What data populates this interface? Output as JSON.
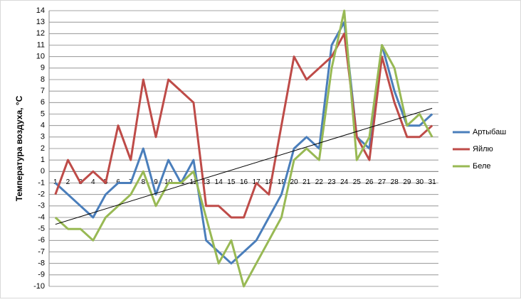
{
  "chart_data": {
    "type": "line",
    "y_label": "Температура воздуха, °С",
    "categories": [
      "1",
      "2",
      "3",
      "4",
      "5",
      "6",
      "7",
      "8",
      "9",
      "10",
      "11",
      "12",
      "13",
      "14",
      "15",
      "16",
      "17",
      "18",
      "19",
      "20",
      "21",
      "22",
      "23",
      "24",
      "25",
      "26",
      "27",
      "28",
      "29",
      "30",
      "31"
    ],
    "series": [
      {
        "name": "Артыбаш",
        "color": "#4a7ebb",
        "values": [
          -1,
          -2,
          -3,
          -4,
          -2,
          -1,
          -1,
          2,
          -2,
          1,
          -1,
          1,
          -6,
          -7,
          -8,
          -7,
          -6,
          -4,
          -2,
          2,
          3,
          2,
          11,
          13,
          3,
          2,
          11,
          7,
          4,
          4,
          5
        ]
      },
      {
        "name": "Яйлю",
        "color": "#be4b48",
        "values": [
          -2,
          1,
          -1,
          0,
          -1,
          4,
          1,
          8,
          3,
          8,
          7,
          6,
          -3,
          -3,
          -4,
          -4,
          -1,
          -2,
          4,
          10,
          8,
          9,
          10,
          12,
          3,
          1,
          10,
          6,
          3,
          3,
          4
        ]
      },
      {
        "name": "Беле",
        "color": "#98b954",
        "values": [
          -4,
          -5,
          -5,
          -6,
          -4,
          -3,
          -2,
          0,
          -3,
          -1,
          -1,
          0,
          -4,
          -8,
          -6,
          -10,
          -8,
          -6,
          -4,
          1,
          2,
          1,
          9,
          14,
          1,
          3,
          11,
          9,
          4,
          5,
          3
        ]
      }
    ],
    "ylim": [
      -10,
      14
    ],
    "yticks": [
      -10,
      -9,
      -8,
      -7,
      -6,
      -5,
      -4,
      -3,
      -2,
      -1,
      0,
      1,
      2,
      3,
      4,
      5,
      6,
      7,
      8,
      9,
      10,
      11,
      12,
      13,
      14
    ],
    "grid": true,
    "trendline": true,
    "legend": "right"
  }
}
